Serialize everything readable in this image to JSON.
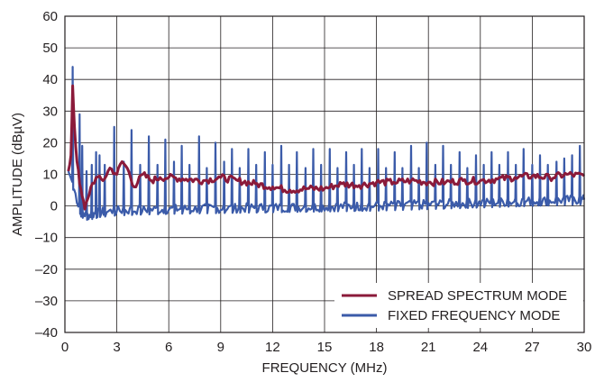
{
  "chart_data": {
    "type": "line",
    "xlabel": "FREQUENCY (MHz)",
    "ylabel": "AMPLITUDE (dBµV)",
    "xlim": [
      0,
      30
    ],
    "ylim": [
      -40,
      60
    ],
    "x_ticks": [
      "0",
      "3",
      "6",
      "9",
      "12",
      "15",
      "18",
      "21",
      "24",
      "27",
      "30"
    ],
    "y_ticks": [
      "60",
      "50",
      "40",
      "30",
      "20",
      "10",
      "0",
      "–10",
      "–20",
      "–30",
      "–40"
    ],
    "grid": true,
    "legend_position": "bottom-right",
    "colors": {
      "spread": "#8b1a3a",
      "fixed": "#3b5ba9",
      "axis": "#231f20",
      "grid": "#231f20"
    },
    "series": [
      {
        "name": "SPREAD SPECTRUM MODE",
        "color": "#8b1a3a",
        "x": [
          0.2,
          0.35,
          0.45,
          0.55,
          0.7,
          0.85,
          1.0,
          1.15,
          1.3,
          1.5,
          1.8,
          2.2,
          2.6,
          3.0,
          3.3,
          3.6,
          4.0,
          4.5,
          5.0,
          5.5,
          6.0,
          7.0,
          8.0,
          9.0,
          10.0,
          11.0,
          12.0,
          13.0,
          14.0,
          15.0,
          16.0,
          17.0,
          18.0,
          19.0,
          20.0,
          21.0,
          22.0,
          23.0,
          24.0,
          25.0,
          26.0,
          27.0,
          28.0,
          29.0,
          30.0
        ],
        "y": [
          11,
          16,
          38,
          25,
          14,
          7,
          3,
          -1,
          2,
          6,
          9,
          8,
          12,
          10,
          14,
          12,
          6,
          10,
          8,
          9,
          9,
          8.5,
          8,
          9,
          8,
          7,
          6,
          5,
          5.5,
          5.5,
          7,
          6.5,
          7.5,
          7.5,
          8,
          7.5,
          7.5,
          8,
          8,
          8.5,
          9,
          9.5,
          9,
          10,
          9.5
        ]
      },
      {
        "name": "FIXED FREQUENCY MODE",
        "color": "#3b5ba9",
        "peaks": [
          [
            0.45,
            44
          ],
          [
            0.85,
            29
          ],
          [
            1.0,
            19
          ],
          [
            1.25,
            11
          ],
          [
            1.55,
            13
          ],
          [
            1.8,
            17
          ],
          [
            2.0,
            16
          ],
          [
            2.3,
            13
          ],
          [
            2.85,
            25
          ],
          [
            3.4,
            14
          ],
          [
            3.85,
            24
          ],
          [
            4.35,
            13
          ],
          [
            4.85,
            22
          ],
          [
            5.35,
            13
          ],
          [
            5.8,
            21
          ],
          [
            6.3,
            14
          ],
          [
            6.75,
            19
          ],
          [
            7.2,
            13
          ],
          [
            7.75,
            22
          ],
          [
            8.2,
            12
          ],
          [
            8.7,
            20
          ],
          [
            9.2,
            14
          ],
          [
            9.65,
            18
          ],
          [
            10.1,
            12
          ],
          [
            10.6,
            18
          ],
          [
            11.05,
            13
          ],
          [
            11.55,
            17
          ],
          [
            12.0,
            13
          ],
          [
            12.5,
            19
          ],
          [
            12.95,
            13
          ],
          [
            13.4,
            17
          ],
          [
            13.9,
            12
          ],
          [
            14.35,
            18
          ],
          [
            14.8,
            13
          ],
          [
            15.3,
            18
          ],
          [
            15.75,
            12
          ],
          [
            16.25,
            17
          ],
          [
            16.7,
            13
          ],
          [
            17.15,
            18
          ],
          [
            17.6,
            12
          ],
          [
            18.1,
            18
          ],
          [
            18.55,
            12
          ],
          [
            19.05,
            17
          ],
          [
            19.5,
            12
          ],
          [
            20.0,
            19
          ],
          [
            20.45,
            12
          ],
          [
            20.9,
            20
          ],
          [
            21.4,
            13
          ],
          [
            21.85,
            19
          ],
          [
            22.3,
            13
          ],
          [
            22.8,
            17
          ],
          [
            23.25,
            12
          ],
          [
            23.75,
            16
          ],
          [
            24.2,
            13
          ],
          [
            24.65,
            17
          ],
          [
            25.1,
            13
          ],
          [
            25.6,
            17
          ],
          [
            26.05,
            13
          ],
          [
            26.5,
            18
          ],
          [
            27.0,
            13
          ],
          [
            27.45,
            16
          ],
          [
            27.9,
            13
          ],
          [
            28.4,
            14
          ],
          [
            28.85,
            15
          ],
          [
            29.3,
            16
          ],
          [
            29.75,
            19
          ]
        ],
        "baseline": [
          [
            0.2,
            11
          ],
          [
            0.6,
            4
          ],
          [
            0.9,
            -2
          ],
          [
            1.3,
            -3
          ],
          [
            2.0,
            -2
          ],
          [
            3.0,
            -1.5
          ],
          [
            6.0,
            -1
          ],
          [
            12.0,
            -0.5
          ],
          [
            18.0,
            0
          ],
          [
            24.0,
            1
          ],
          [
            30.0,
            2
          ]
        ]
      }
    ]
  }
}
